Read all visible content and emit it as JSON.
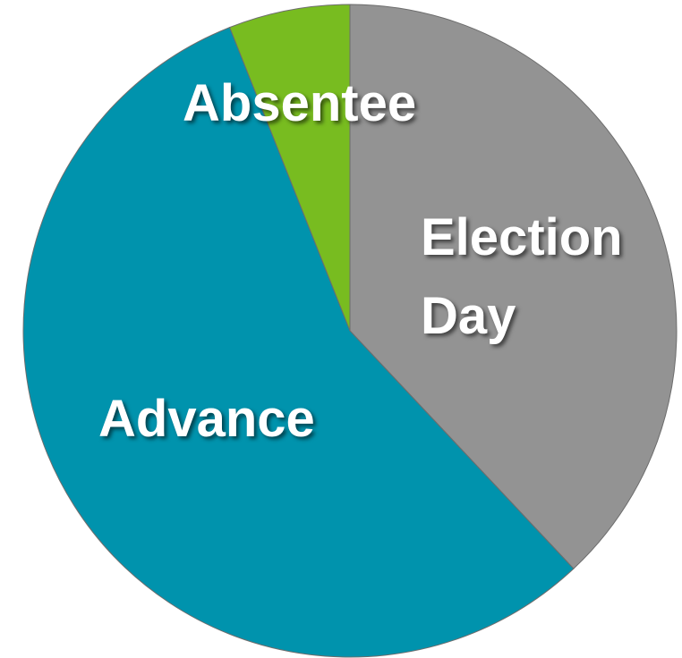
{
  "chart_data": {
    "type": "pie",
    "categories": [
      "Election Day",
      "Advance",
      "Absentee"
    ],
    "values": [
      38,
      56,
      6
    ],
    "colors": [
      "#939393",
      "#0093ad",
      "#78bc20"
    ]
  }
}
